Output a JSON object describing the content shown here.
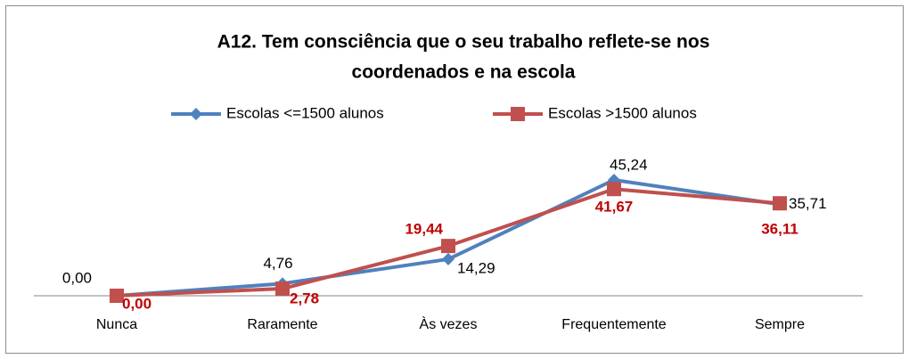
{
  "chart_data": {
    "type": "line",
    "title": [
      "A12. Tem consciência que o seu trabalho reflete-se nos",
      "coordenados e na escola"
    ],
    "categories": [
      "Nunca",
      "Raramente",
      "Às vezes",
      "Frequentemente",
      "Sempre"
    ],
    "series": [
      {
        "name": "Escolas <=1500 alunos",
        "color": "#4f81bd",
        "label_color": "#000000",
        "values": [
          0,
          4.76,
          14.29,
          45.24,
          35.71
        ],
        "value_labels": [
          "0,00",
          "4,76",
          "14,29",
          "45,24",
          "35,71"
        ]
      },
      {
        "name": "Escolas >1500 alunos",
        "color": "#c0504d",
        "label_color": "#c00000",
        "values": [
          0,
          2.78,
          19.44,
          41.67,
          36.11
        ],
        "value_labels": [
          "0,00",
          "2,78",
          "19,44",
          "41,67",
          "36,11"
        ]
      }
    ],
    "ylim": [
      0,
      50
    ],
    "legend": "top"
  }
}
